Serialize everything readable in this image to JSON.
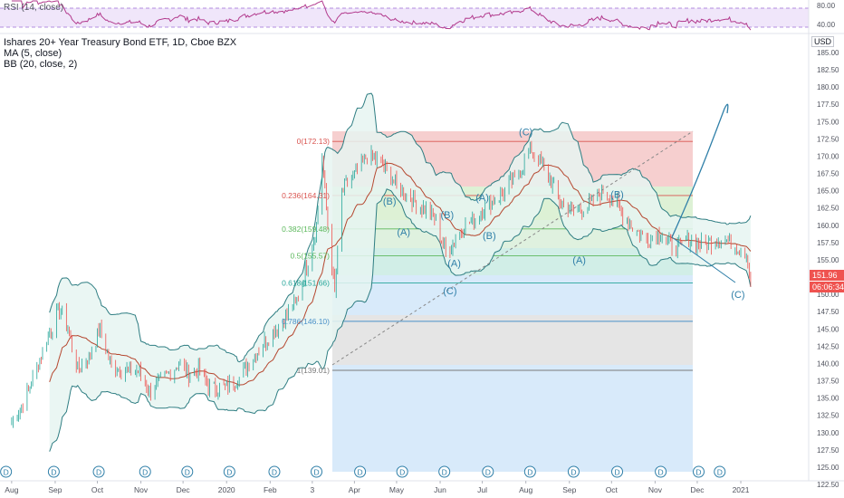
{
  "rsi": {
    "label": "RSI (14, close)",
    "upper_band": 70,
    "lower_band": 30,
    "axis_labels": [
      "80.00",
      "40.00"
    ]
  },
  "legend": {
    "title": "Ishares 20+ Year Treasury Bond ETF, 1D, Cboe BZX",
    "ma": "MA (5, close)",
    "bb": "BB (20, close, 2)"
  },
  "currency": "USD",
  "price_tags": {
    "last": "151.96",
    "countdown": "06:06:34"
  },
  "colors": {
    "up": "#26a69a",
    "down": "#ef5350",
    "bb_line": "#2e7d82",
    "bb_fill": "#e8f5f3",
    "ma": "#8b1a1a",
    "wave_label": "#2f7fa8",
    "fib_red": "#f4c7c7",
    "fib_green": "#d7eed7",
    "fib_blue": "#d4e8fa",
    "fib_gray": "#e2e2e2"
  },
  "chart_data": {
    "type": "candlestick",
    "title": "Ishares 20+ Year Treasury Bond ETF, 1D, Cboe BZX",
    "ylim": [
      122.5,
      185
    ],
    "y_ticks": [
      "185.00",
      "182.50",
      "180.00",
      "177.50",
      "175.00",
      "172.50",
      "170.00",
      "167.50",
      "165.00",
      "162.50",
      "160.00",
      "157.50",
      "155.00",
      "152.50",
      "150.00",
      "147.50",
      "145.00",
      "142.50",
      "140.00",
      "137.50",
      "135.00",
      "132.50",
      "130.00",
      "127.50",
      "125.00",
      "122.50"
    ],
    "x_ticks": [
      "Aug",
      "Sep",
      "Oct",
      "Nov",
      "Dec",
      "2020",
      "Feb",
      "3",
      "Apr",
      "May",
      "Jun",
      "Jul",
      "Aug",
      "Sep",
      "Oct",
      "Nov",
      "Dec",
      "2021"
    ],
    "close_series": [
      [
        "2019-08-01",
        131.5
      ],
      [
        "2019-08-10",
        134.5
      ],
      [
        "2019-08-20",
        140
      ],
      [
        "2019-08-27",
        144
      ],
      [
        "2019-09-04",
        148
      ],
      [
        "2019-09-10",
        145
      ],
      [
        "2019-09-17",
        139
      ],
      [
        "2019-09-25",
        141
      ],
      [
        "2019-10-03",
        145
      ],
      [
        "2019-10-10",
        140
      ],
      [
        "2019-10-20",
        139
      ],
      [
        "2019-10-30",
        139
      ],
      [
        "2019-11-07",
        136
      ],
      [
        "2019-11-18",
        138
      ],
      [
        "2019-11-28",
        140
      ],
      [
        "2019-12-05",
        138.5
      ],
      [
        "2019-12-12",
        139
      ],
      [
        "2019-12-20",
        136.5
      ],
      [
        "2019-12-31",
        136.5
      ],
      [
        "2020-01-10",
        138
      ],
      [
        "2020-01-20",
        141
      ],
      [
        "2020-01-31",
        144
      ],
      [
        "2020-02-10",
        146
      ],
      [
        "2020-02-20",
        149
      ],
      [
        "2020-02-28",
        155
      ],
      [
        "2020-03-05",
        160
      ],
      [
        "2020-03-09",
        170
      ],
      [
        "2020-03-13",
        160
      ],
      [
        "2020-03-18",
        150
      ],
      [
        "2020-03-23",
        165
      ],
      [
        "2020-03-31",
        167
      ],
      [
        "2020-04-10",
        170
      ],
      [
        "2020-04-20",
        169
      ],
      [
        "2020-04-30",
        166
      ],
      [
        "2020-05-10",
        164
      ],
      [
        "2020-05-20",
        162.5
      ],
      [
        "2020-05-28",
        161
      ],
      [
        "2020-06-05",
        156
      ],
      [
        "2020-06-15",
        159
      ],
      [
        "2020-06-25",
        161
      ],
      [
        "2020-07-05",
        163
      ],
      [
        "2020-07-15",
        164.5
      ],
      [
        "2020-07-25",
        167
      ],
      [
        "2020-08-05",
        171
      ],
      [
        "2020-08-15",
        168
      ],
      [
        "2020-08-25",
        163.5
      ],
      [
        "2020-09-05",
        162
      ],
      [
        "2020-09-15",
        163
      ],
      [
        "2020-09-25",
        165
      ],
      [
        "2020-10-05",
        163
      ],
      [
        "2020-10-15",
        160
      ],
      [
        "2020-10-25",
        158
      ],
      [
        "2020-11-05",
        159
      ],
      [
        "2020-11-15",
        156.5
      ],
      [
        "2020-11-25",
        158
      ],
      [
        "2020-12-05",
        157
      ],
      [
        "2020-12-15",
        158
      ],
      [
        "2020-12-25",
        157.5
      ],
      [
        "2021-01-05",
        156
      ],
      [
        "2021-01-08",
        152
      ]
    ],
    "fib_retracement": [
      {
        "level": "0",
        "price": 172.13
      },
      {
        "level": "0.236",
        "price": 164.31
      },
      {
        "level": "0.382",
        "price": 159.48
      },
      {
        "level": "0.5",
        "price": 155.57
      },
      {
        "level": "0.618",
        "price": 151.66
      },
      {
        "level": "0.786",
        "price": 146.1
      },
      {
        "level": "1",
        "price": 139.01
      }
    ],
    "fib_labels": [
      "0(172.13)",
      "0.236(164.31)",
      "0.382(159.48)",
      "0.5(155.57)",
      "0.618(151.66)",
      "0.786(146.10)",
      "1(139.01)"
    ],
    "wave_labels": [
      "(B)",
      "(A)",
      "(B)",
      "(A)",
      "(A)",
      "(B)",
      "(C)",
      "(C)",
      "(B)",
      "(A)",
      "(C)"
    ],
    "dividend_markers_label": "D",
    "dividend_marker_count": 18
  }
}
